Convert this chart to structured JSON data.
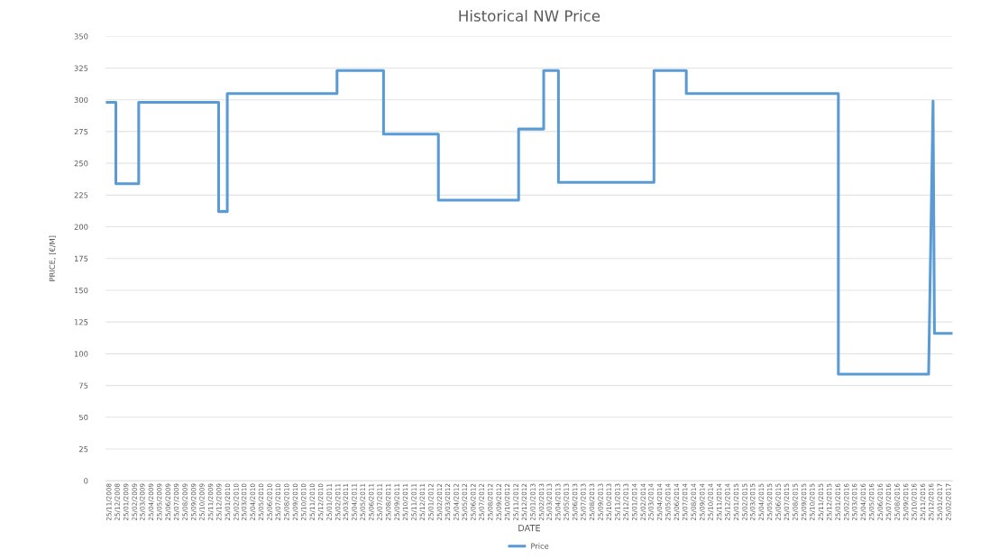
{
  "chart_data": {
    "type": "line",
    "title": "Historical NW Price",
    "xlabel": "DATE",
    "ylabel": "PRICE, [€/M]",
    "series": [
      {
        "name": "Price",
        "color": "#5b9bd5",
        "x": [
          "2008-11-15",
          "2008-12-18",
          "2008-12-18",
          "2009-03-10",
          "2009-03-10",
          "2009-12-22",
          "2009-12-22",
          "2010-01-22",
          "2010-01-22",
          "2011-02-20",
          "2011-02-20",
          "2011-08-06",
          "2011-08-06",
          "2012-02-19",
          "2012-02-19",
          "2012-12-03",
          "2012-12-03",
          "2013-03-03",
          "2013-03-03",
          "2013-04-25",
          "2013-04-25",
          "2014-04-03",
          "2014-04-03",
          "2014-07-28",
          "2014-07-28",
          "2016-01-25",
          "2016-01-25",
          "2016-12-14",
          "2016-12-30",
          "2017-01-04",
          "2017-03-08"
        ],
        "values": [
          298,
          298,
          234,
          234,
          298,
          298,
          212,
          212,
          305,
          305,
          323,
          323,
          273,
          273,
          221,
          221,
          277,
          277,
          323,
          323,
          235,
          235,
          323,
          323,
          305,
          305,
          84,
          84,
          299,
          116,
          116
        ]
      }
    ],
    "xlim": [
      "2008-11-12",
      "2017-03-10"
    ],
    "ylim": [
      0,
      350
    ],
    "yticks": [
      0,
      25,
      50,
      75,
      100,
      125,
      150,
      175,
      200,
      225,
      250,
      275,
      300,
      325,
      350
    ],
    "xticks": [
      {
        "value": "2008-11-25",
        "label": "25/11/2008"
      },
      {
        "value": "2008-12-25",
        "label": "25/12/2008"
      },
      {
        "value": "2009-01-25",
        "label": "25/01/2009"
      },
      {
        "value": "2009-02-25",
        "label": "25/02/2009"
      },
      {
        "value": "2009-03-25",
        "label": "25/03/2009"
      },
      {
        "value": "2009-04-25",
        "label": "25/04/2009"
      },
      {
        "value": "2009-05-25",
        "label": "25/05/2009"
      },
      {
        "value": "2009-06-25",
        "label": "25/06/2009"
      },
      {
        "value": "2009-07-25",
        "label": "25/07/2009"
      },
      {
        "value": "2009-08-25",
        "label": "25/08/2009"
      },
      {
        "value": "2009-09-25",
        "label": "25/09/2009"
      },
      {
        "value": "2009-10-25",
        "label": "25/10/2009"
      },
      {
        "value": "2009-11-25",
        "label": "25/11/2009"
      },
      {
        "value": "2009-12-25",
        "label": "25/12/2009"
      },
      {
        "value": "2010-01-25",
        "label": "25/01/2010"
      },
      {
        "value": "2010-02-25",
        "label": "25/02/2010"
      },
      {
        "value": "2010-03-25",
        "label": "25/03/2010"
      },
      {
        "value": "2010-04-25",
        "label": "25/04/2010"
      },
      {
        "value": "2010-05-25",
        "label": "25/05/2010"
      },
      {
        "value": "2010-06-25",
        "label": "25/06/2010"
      },
      {
        "value": "2010-07-25",
        "label": "25/07/2010"
      },
      {
        "value": "2010-08-25",
        "label": "25/08/2010"
      },
      {
        "value": "2010-09-25",
        "label": "25/09/2010"
      },
      {
        "value": "2010-10-25",
        "label": "25/10/2010"
      },
      {
        "value": "2010-11-25",
        "label": "25/11/2010"
      },
      {
        "value": "2010-12-25",
        "label": "25/12/2010"
      },
      {
        "value": "2011-01-25",
        "label": "25/01/2011"
      },
      {
        "value": "2011-02-25",
        "label": "25/02/2011"
      },
      {
        "value": "2011-03-25",
        "label": "25/03/2011"
      },
      {
        "value": "2011-04-25",
        "label": "25/04/2011"
      },
      {
        "value": "2011-05-25",
        "label": "25/05/2011"
      },
      {
        "value": "2011-06-25",
        "label": "25/06/2011"
      },
      {
        "value": "2011-07-25",
        "label": "25/07/2011"
      },
      {
        "value": "2011-08-25",
        "label": "25/08/2011"
      },
      {
        "value": "2011-09-25",
        "label": "25/09/2011"
      },
      {
        "value": "2011-10-25",
        "label": "25/10/2011"
      },
      {
        "value": "2011-11-25",
        "label": "25/11/2011"
      },
      {
        "value": "2011-12-25",
        "label": "25/12/2011"
      },
      {
        "value": "2012-01-25",
        "label": "25/01/2012"
      },
      {
        "value": "2012-02-25",
        "label": "25/02/2012"
      },
      {
        "value": "2012-03-25",
        "label": "25/03/2012"
      },
      {
        "value": "2012-04-25",
        "label": "25/04/2012"
      },
      {
        "value": "2012-05-25",
        "label": "25/05/2012"
      },
      {
        "value": "2012-06-25",
        "label": "25/06/2012"
      },
      {
        "value": "2012-07-25",
        "label": "25/07/2012"
      },
      {
        "value": "2012-08-25",
        "label": "25/08/2012"
      },
      {
        "value": "2012-09-25",
        "label": "25/09/2012"
      },
      {
        "value": "2012-10-25",
        "label": "25/10/2012"
      },
      {
        "value": "2012-11-25",
        "label": "25/11/2012"
      },
      {
        "value": "2012-12-25",
        "label": "25/12/2012"
      },
      {
        "value": "2013-01-25",
        "label": "25/01/2013"
      },
      {
        "value": "2013-02-25",
        "label": "25/02/2013"
      },
      {
        "value": "2013-03-25",
        "label": "25/03/2013"
      },
      {
        "value": "2013-04-25",
        "label": "25/04/2013"
      },
      {
        "value": "2013-05-25",
        "label": "25/05/2013"
      },
      {
        "value": "2013-06-25",
        "label": "25/06/2013"
      },
      {
        "value": "2013-07-25",
        "label": "25/07/2013"
      },
      {
        "value": "2013-08-25",
        "label": "25/08/2013"
      },
      {
        "value": "2013-09-25",
        "label": "25/09/2013"
      },
      {
        "value": "2013-10-25",
        "label": "25/10/2013"
      },
      {
        "value": "2013-11-25",
        "label": "25/11/2013"
      },
      {
        "value": "2013-12-25",
        "label": "25/12/2013"
      },
      {
        "value": "2014-01-25",
        "label": "25/01/2014"
      },
      {
        "value": "2014-02-25",
        "label": "25/02/2014"
      },
      {
        "value": "2014-03-25",
        "label": "25/03/2014"
      },
      {
        "value": "2014-04-25",
        "label": "25/04/2014"
      },
      {
        "value": "2014-05-25",
        "label": "25/05/2014"
      },
      {
        "value": "2014-06-25",
        "label": "25/06/2014"
      },
      {
        "value": "2014-07-25",
        "label": "25/07/2014"
      },
      {
        "value": "2014-08-25",
        "label": "25/08/2014"
      },
      {
        "value": "2014-09-25",
        "label": "25/09/2014"
      },
      {
        "value": "2014-10-25",
        "label": "25/10/2014"
      },
      {
        "value": "2014-11-25",
        "label": "25/11/2014"
      },
      {
        "value": "2014-12-25",
        "label": "25/12/2014"
      },
      {
        "value": "2015-01-25",
        "label": "25/01/2015"
      },
      {
        "value": "2015-02-25",
        "label": "25/02/2015"
      },
      {
        "value": "2015-03-25",
        "label": "25/03/2015"
      },
      {
        "value": "2015-04-25",
        "label": "25/04/2015"
      },
      {
        "value": "2015-05-25",
        "label": "25/05/2015"
      },
      {
        "value": "2015-06-25",
        "label": "25/06/2015"
      },
      {
        "value": "2015-07-25",
        "label": "25/07/2015"
      },
      {
        "value": "2015-08-25",
        "label": "25/08/2015"
      },
      {
        "value": "2015-09-25",
        "label": "25/09/2015"
      },
      {
        "value": "2015-10-25",
        "label": "25/10/2015"
      },
      {
        "value": "2015-11-25",
        "label": "25/11/2015"
      },
      {
        "value": "2015-12-25",
        "label": "25/12/2015"
      },
      {
        "value": "2016-01-25",
        "label": "25/01/2016"
      },
      {
        "value": "2016-02-25",
        "label": "25/02/2016"
      },
      {
        "value": "2016-03-25",
        "label": "25/03/2016"
      },
      {
        "value": "2016-04-25",
        "label": "25/04/2016"
      },
      {
        "value": "2016-05-25",
        "label": "25/05/2016"
      },
      {
        "value": "2016-06-25",
        "label": "25/06/2016"
      },
      {
        "value": "2016-07-25",
        "label": "25/07/2016"
      },
      {
        "value": "2016-08-25",
        "label": "25/08/2016"
      },
      {
        "value": "2016-09-25",
        "label": "25/09/2016"
      },
      {
        "value": "2016-10-25",
        "label": "25/10/2016"
      },
      {
        "value": "2016-11-25",
        "label": "25/11/2016"
      },
      {
        "value": "2016-12-25",
        "label": "25/12/2016"
      },
      {
        "value": "2017-01-25",
        "label": "25/01/2017"
      },
      {
        "value": "2017-02-25",
        "label": "25/02/2017"
      }
    ],
    "grid": "y",
    "legend": "bottom",
    "marker": "none",
    "line_style": "solid"
  }
}
